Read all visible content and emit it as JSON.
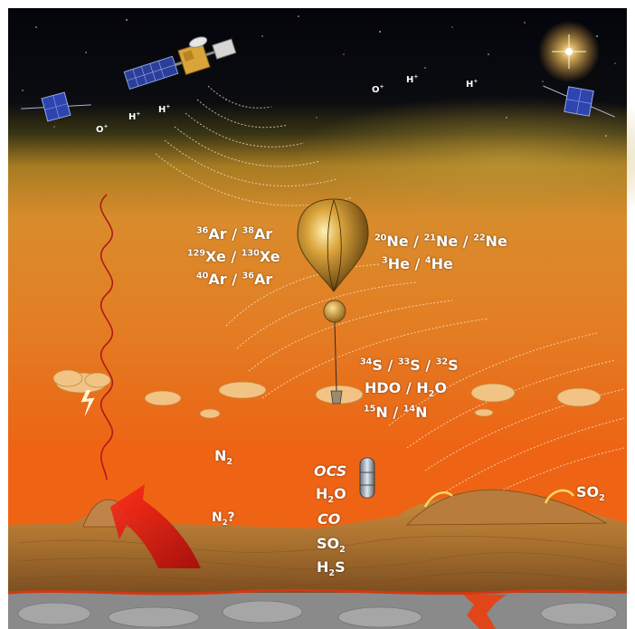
{
  "image": {
    "description_colors": {
      "space": "#05060c",
      "upper_haze": "#6b5a1e",
      "sky_mid": "#e08a2a",
      "sky_low": "#e86a1a",
      "ground": "#b0702a",
      "rock": "#8e8e8e",
      "lava": "#e0461a",
      "wave_color": "#b01818",
      "arrow_color": "#d81818"
    },
    "ions": {
      "o_plus_1": "O",
      "h_plus_1": "H",
      "h_plus_2": "H",
      "o_plus_2": "O",
      "h_plus_3": "H",
      "h_plus_4": "H",
      "plus": "+"
    },
    "isotopes_left": {
      "line1": {
        "m1": "36",
        "e1": "Ar",
        "sep": " / ",
        "m2": "38",
        "e2": "Ar"
      },
      "line2": {
        "m1": "129",
        "e1": "Xe",
        "sep": " / ",
        "m2": "130",
        "e2": "Xe"
      },
      "line3": {
        "m1": "40",
        "e1": "Ar",
        "sep": " / ",
        "m2": "36",
        "e2": "Ar"
      }
    },
    "isotopes_right": {
      "line1": {
        "m1": "20",
        "e1": "Ne",
        "sep1": " / ",
        "m2": "21",
        "e2": "Ne",
        "sep2": " / ",
        "m3": "22",
        "e3": "Ne"
      },
      "line2": {
        "m1": "3",
        "e1": "He",
        "sep": " / ",
        "m2": "4",
        "e2": "He"
      }
    },
    "isotopes_center": {
      "line1": {
        "m1": "34",
        "e1": "S",
        "sep1": " / ",
        "m2": "33",
        "e2": "S",
        "sep2": " / ",
        "m3": "32",
        "e3": "S"
      },
      "line2": {
        "a": "HDO / H",
        "sub": "2",
        "b": "O"
      },
      "line3": {
        "m1": "15",
        "e1": "N",
        "sep": " / ",
        "m2": "14",
        "e2": "N"
      }
    },
    "gases": {
      "n2": {
        "base": "N",
        "sub": "2"
      },
      "n2q": {
        "base": "N",
        "sub": "2",
        "suffix": "?"
      },
      "ocs": "OCS",
      "h2o": {
        "a": "H",
        "sub": "2",
        "b": "O"
      },
      "co": "CO",
      "so2_center": {
        "a": "SO",
        "sub": "2"
      },
      "h2s": {
        "a": "H",
        "sub": "2",
        "b": "S"
      },
      "so2_right": {
        "a": "SO",
        "sub": "2"
      }
    }
  }
}
